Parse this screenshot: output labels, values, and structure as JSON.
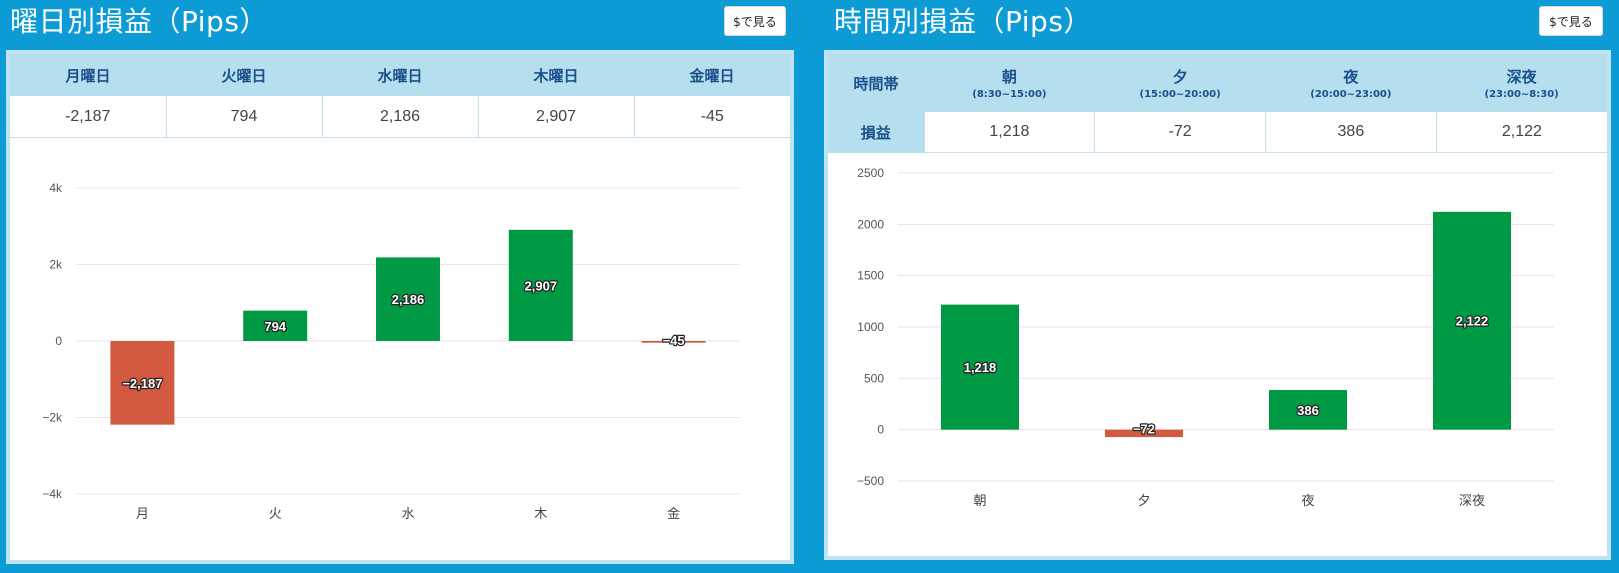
{
  "day_panel": {
    "title": "曜日別損益（Pips）",
    "usd_button": "$で見る",
    "headers": [
      "月曜日",
      "火曜日",
      "水曜日",
      "木曜日",
      "金曜日"
    ],
    "values": [
      "-2,187",
      "794",
      "2,186",
      "2,907",
      "-45"
    ]
  },
  "time_panel": {
    "title": "時間別損益（Pips）",
    "usd_button": "$で見る",
    "corner_header": "時間帯",
    "row_label": "損益",
    "headers": [
      {
        "label": "朝",
        "range": "(8:30~15:00)"
      },
      {
        "label": "夕",
        "range": "(15:00~20:00)"
      },
      {
        "label": "夜",
        "range": "(20:00~23:00)"
      },
      {
        "label": "深夜",
        "range": "(23:00~8:30)"
      }
    ],
    "values": [
      "1,218",
      "-72",
      "386",
      "2,122"
    ]
  },
  "colors": {
    "positive": "#009a44",
    "negative": "#d35a40",
    "background": "#0d9bd6",
    "header": "#b5dfee"
  },
  "chart_data": [
    {
      "type": "bar",
      "categories": [
        "月",
        "火",
        "水",
        "木",
        "金"
      ],
      "values": [
        -2187,
        794,
        2186,
        2907,
        -45
      ],
      "data_labels": [
        "−2,187",
        "794",
        "2,186",
        "2,907",
        "−45"
      ],
      "ylim": [
        -4000,
        4000
      ],
      "yticks": [
        4000,
        2000,
        0,
        -2000,
        -4000
      ],
      "ytick_labels": [
        "4k",
        "2k",
        "0",
        "−2k",
        "−4k"
      ],
      "grid": true
    },
    {
      "type": "bar",
      "categories": [
        "朝",
        "夕",
        "夜",
        "深夜"
      ],
      "values": [
        1218,
        -72,
        386,
        2122
      ],
      "data_labels": [
        "1,218",
        "−72",
        "386",
        "2,122"
      ],
      "ylim": [
        -500,
        2500
      ],
      "yticks": [
        2500,
        2000,
        1500,
        1000,
        500,
        0,
        -500
      ],
      "ytick_labels": [
        "2500",
        "2000",
        "1500",
        "1000",
        "500",
        "0",
        "−500"
      ],
      "grid": true
    }
  ]
}
